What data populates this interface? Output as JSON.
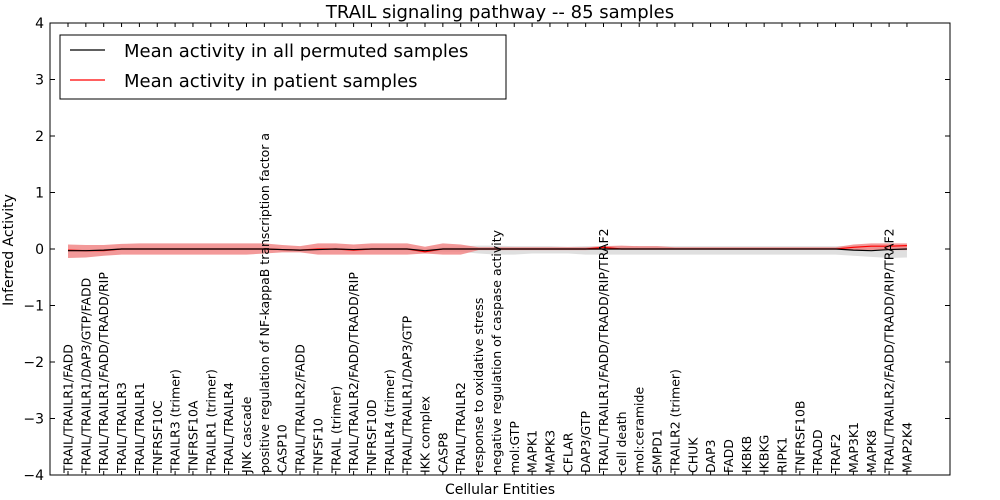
{
  "chart_data": {
    "type": "line",
    "title": "TRAIL signaling pathway -- 85 samples",
    "xlabel": "Cellular Entities",
    "ylabel": "Inferred Activity",
    "ylim": [
      -4,
      4
    ],
    "yticks": [
      "4",
      "3",
      "2",
      "1",
      "0",
      "−1",
      "−2",
      "−3",
      "−4"
    ],
    "legend_position": "upper-left",
    "grid": false,
    "categories": [
      "TRAIL/TRAILR1/FADD",
      "TRAIL/TRAILR1/DAP3/GTP/FADD",
      "TRAIL/TRAILR1/FADD/TRADD/RIP",
      "TRAIL/TRAILR3",
      "TRAIL/TRAILR1",
      "TNFRSF10C",
      "TRAILR3 (trimer)",
      "TNFRSF10A",
      "TRAILR1 (trimer)",
      "TRAIL/TRAILR4",
      "JNK cascade",
      "positive regulation of NF-kappaB transcription factor a",
      "CASP10",
      "TRAIL/TRAILR2/FADD",
      "TNFSF10",
      "TRAIL (trimer)",
      "TRAIL/TRAILR2/FADD/TRADD/RIP",
      "TNFRSF10D",
      "TRAILR4 (trimer)",
      "TRAIL/TRAILR1/DAP3/GTP",
      "IKK complex",
      "CASP8",
      "TRAIL/TRAILR2",
      "response to oxidative stress",
      "negative regulation of caspase activity",
      "mol:GTP",
      "MAPK1",
      "MAPK3",
      "CFLAR",
      "DAP3/GTP",
      "TRAIL/TRAILR1/FADD/TRADD/RIP/TRAF2",
      "cell death",
      "mol:ceramide",
      "SMPD1",
      "TRAILR2 (trimer)",
      "CHUK",
      "DAP3",
      "FADD",
      "IKBKB",
      "IKBKG",
      "RIPK1",
      "TNFRSF10B",
      "TRADD",
      "TRAF2",
      "MAP3K1",
      "MAPK8",
      "TRAIL/TRAILR2/FADD/TRADD/RIP/TRAF2",
      "MAP2K4"
    ],
    "series": [
      {
        "name": "Mean activity in all permuted samples",
        "color": "#000000",
        "values": [
          -0.03,
          -0.03,
          -0.02,
          0.0,
          0.0,
          0.0,
          0.0,
          0.0,
          0.0,
          0.0,
          0.0,
          0.0,
          -0.01,
          -0.02,
          -0.01,
          0.0,
          -0.01,
          0.0,
          0.0,
          0.0,
          -0.03,
          0.0,
          0.0,
          0.0,
          0.0,
          0.0,
          0.0,
          0.0,
          0.0,
          0.0,
          0.0,
          0.0,
          0.0,
          0.0,
          0.0,
          0.0,
          0.0,
          0.0,
          0.0,
          0.0,
          0.0,
          0.0,
          0.0,
          0.0,
          -0.02,
          -0.03,
          -0.01,
          0.0
        ],
        "band_color": "#d4d4d4",
        "band_lower": [
          -0.05,
          -0.05,
          -0.04,
          -0.02,
          -0.02,
          -0.02,
          -0.02,
          -0.02,
          -0.02,
          -0.02,
          -0.02,
          -0.02,
          -0.03,
          -0.04,
          -0.03,
          -0.02,
          -0.03,
          -0.02,
          -0.02,
          -0.02,
          -0.08,
          -0.05,
          -0.05,
          -0.08,
          -0.1,
          -0.1,
          -0.08,
          -0.08,
          -0.08,
          -0.1,
          -0.1,
          -0.1,
          -0.1,
          -0.1,
          -0.1,
          -0.1,
          -0.1,
          -0.1,
          -0.1,
          -0.1,
          -0.1,
          -0.1,
          -0.1,
          -0.1,
          -0.12,
          -0.14,
          -0.16,
          -0.15
        ],
        "band_upper": [
          0.0,
          0.0,
          0.0,
          0.02,
          0.02,
          0.02,
          0.02,
          0.02,
          0.02,
          0.02,
          0.02,
          0.02,
          0.01,
          0.0,
          0.01,
          0.02,
          0.01,
          0.02,
          0.02,
          0.02,
          0.01,
          0.03,
          0.05,
          0.06,
          0.06,
          0.05,
          0.05,
          0.05,
          0.04,
          0.05,
          0.05,
          0.05,
          0.05,
          0.05,
          0.05,
          0.05,
          0.05,
          0.05,
          0.05,
          0.05,
          0.05,
          0.05,
          0.05,
          0.05,
          0.06,
          0.06,
          0.05,
          0.05
        ]
      },
      {
        "name": "Mean activity in patient samples",
        "color": "#ff0000",
        "values": [
          -0.02,
          -0.03,
          -0.03,
          0.0,
          0.0,
          0.0,
          0.0,
          0.0,
          0.0,
          0.0,
          0.0,
          0.0,
          -0.01,
          -0.02,
          0.0,
          0.0,
          -0.02,
          0.0,
          0.0,
          0.0,
          -0.05,
          0.0,
          0.0,
          0.0,
          0.0,
          0.0,
          0.0,
          0.0,
          0.0,
          0.0,
          0.03,
          0.0,
          0.0,
          0.0,
          0.0,
          0.0,
          0.0,
          0.0,
          0.0,
          0.0,
          0.0,
          0.0,
          0.0,
          0.0,
          0.03,
          0.05,
          0.05,
          0.06
        ],
        "band_color": "#f08080",
        "band_lower": [
          -0.16,
          -0.15,
          -0.12,
          -0.1,
          -0.1,
          -0.1,
          -0.1,
          -0.1,
          -0.1,
          -0.1,
          -0.1,
          -0.08,
          -0.06,
          -0.06,
          -0.1,
          -0.1,
          -0.1,
          -0.1,
          -0.1,
          -0.1,
          -0.08,
          -0.1,
          -0.1,
          -0.02,
          -0.02,
          -0.02,
          -0.02,
          -0.02,
          -0.02,
          -0.02,
          -0.01,
          -0.01,
          -0.01,
          -0.01,
          -0.01,
          -0.01,
          -0.01,
          -0.01,
          -0.01,
          -0.01,
          -0.01,
          -0.01,
          -0.01,
          -0.01,
          -0.02,
          -0.02,
          -0.02,
          -0.02
        ],
        "band_upper": [
          0.08,
          0.07,
          0.07,
          0.09,
          0.1,
          0.1,
          0.1,
          0.1,
          0.1,
          0.1,
          0.1,
          0.1,
          0.07,
          0.05,
          0.1,
          0.1,
          0.08,
          0.1,
          0.1,
          0.1,
          0.04,
          0.1,
          0.08,
          0.03,
          0.03,
          0.03,
          0.03,
          0.03,
          0.03,
          0.03,
          0.05,
          0.06,
          0.05,
          0.05,
          0.03,
          0.03,
          0.03,
          0.03,
          0.03,
          0.03,
          0.03,
          0.03,
          0.03,
          0.03,
          0.08,
          0.1,
          0.1,
          0.1
        ]
      }
    ]
  }
}
